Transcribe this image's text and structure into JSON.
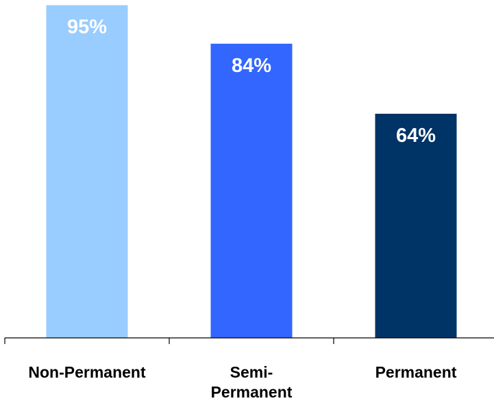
{
  "chart_data": {
    "type": "bar",
    "categories": [
      [
        "Non-Permanent"
      ],
      [
        "Semi-",
        "Permanent"
      ],
      [
        "Permanent"
      ]
    ],
    "values": [
      95,
      84,
      64
    ],
    "value_labels": [
      "95%",
      "84%",
      "64%"
    ],
    "colors": [
      "#99CCFF",
      "#3366FF",
      "#003366"
    ],
    "ylim": [
      0,
      100
    ],
    "grid": false,
    "legend": "none"
  }
}
